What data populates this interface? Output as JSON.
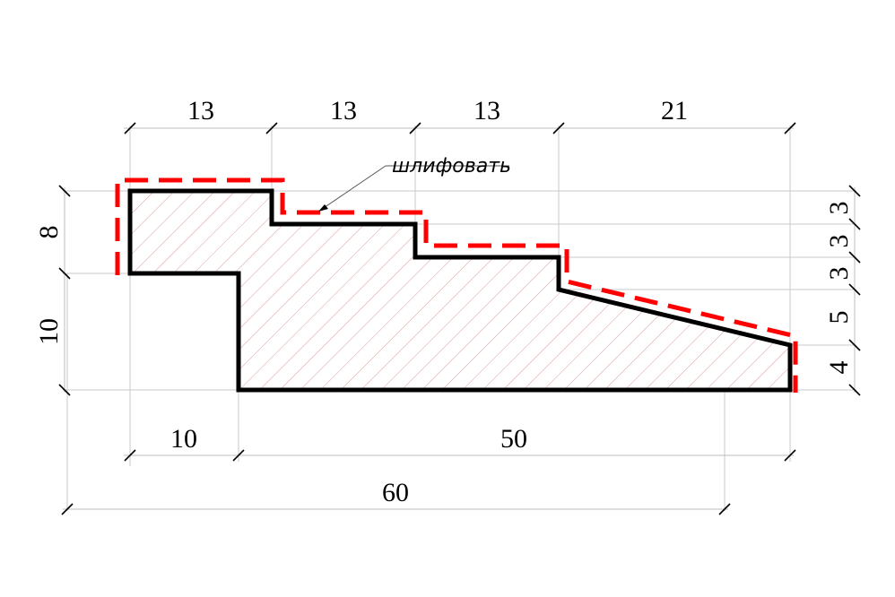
{
  "annotation": {
    "label": "шлифовать"
  },
  "dimensions": {
    "top": [
      "13",
      "13",
      "13",
      "21"
    ],
    "left": [
      "8",
      "10"
    ],
    "right": [
      "3",
      "3",
      "3",
      "5",
      "4"
    ],
    "bottom": [
      "10",
      "50"
    ],
    "overall": "60"
  },
  "colors": {
    "outline": "#000000",
    "grind_allowance": "#ff0000",
    "hatch": "#d89090"
  }
}
